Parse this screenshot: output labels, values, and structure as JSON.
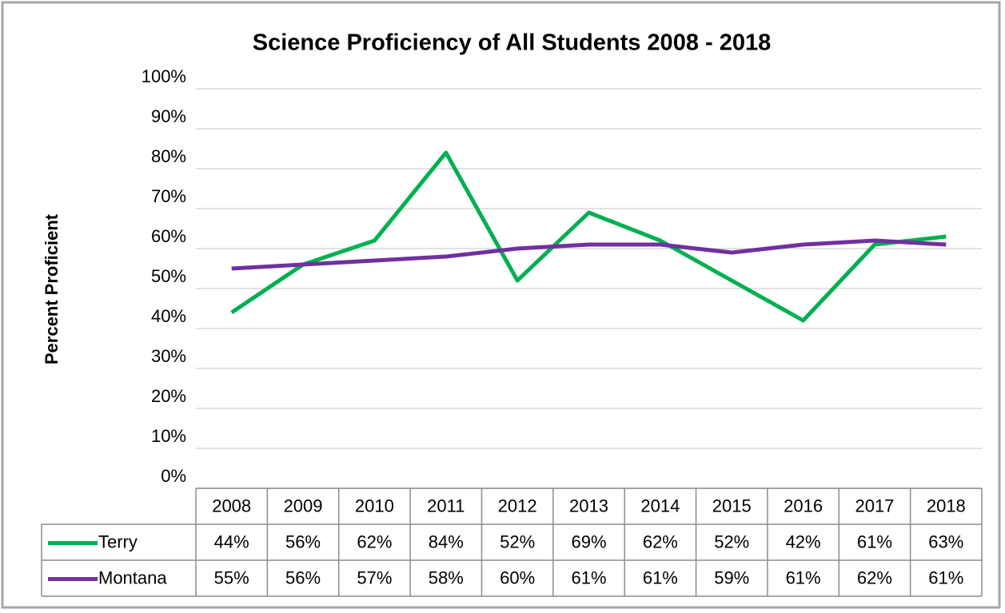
{
  "chart_data": {
    "type": "line",
    "title": "Science Proficiency of All Students 2008 - 2018",
    "y_label": "Percent Proficient",
    "categories": [
      "2008",
      "2009",
      "2010",
      "2011",
      "2012",
      "2013",
      "2014",
      "2015",
      "2016",
      "2017",
      "2018"
    ],
    "series": [
      {
        "name": "Terry",
        "color": "#00b050",
        "values": [
          44,
          56,
          62,
          84,
          52,
          69,
          62,
          52,
          42,
          61,
          63
        ],
        "value_labels": [
          "44%",
          "56%",
          "62%",
          "84%",
          "52%",
          "69%",
          "62%",
          "52%",
          "42%",
          "61%",
          "63%"
        ]
      },
      {
        "name": "Montana",
        "color": "#7030a0",
        "values": [
          55,
          56,
          57,
          58,
          60,
          61,
          61,
          59,
          61,
          62,
          61
        ],
        "value_labels": [
          "55%",
          "56%",
          "57%",
          "58%",
          "60%",
          "61%",
          "61%",
          "59%",
          "61%",
          "62%",
          "61%"
        ]
      }
    ],
    "ylim": [
      0,
      100
    ],
    "yticks": [
      {
        "value": 0,
        "label": "0%"
      },
      {
        "value": 10,
        "label": "10%"
      },
      {
        "value": 20,
        "label": "20%"
      },
      {
        "value": 30,
        "label": "30%"
      },
      {
        "value": 40,
        "label": "40%"
      },
      {
        "value": 50,
        "label": "50%"
      },
      {
        "value": 60,
        "label": "60%"
      },
      {
        "value": 70,
        "label": "70%"
      },
      {
        "value": 80,
        "label": "80%"
      },
      {
        "value": 90,
        "label": "90%"
      },
      {
        "value": 100,
        "label": "100%"
      }
    ],
    "grid": true
  }
}
